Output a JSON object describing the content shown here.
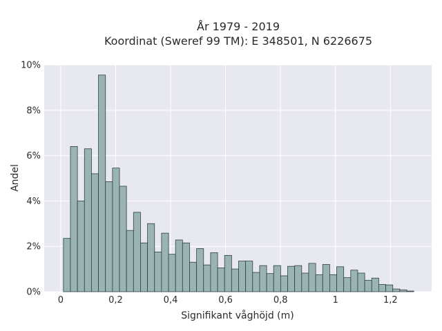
{
  "chart_data": {
    "type": "bar",
    "title_lines": [
      "År 1979 - 2019",
      "Koordinat (Sweref 99 TM): E 348501, N 6226675"
    ],
    "xlabel": "Signifikant våghöjd (m)",
    "ylabel": "Andel",
    "xlim": [
      -0.06,
      1.35
    ],
    "ylim": [
      0,
      10
    ],
    "x_ticks": [
      {
        "value": 0,
        "label": "0"
      },
      {
        "value": 0.2,
        "label": "0,2"
      },
      {
        "value": 0.4,
        "label": "0,4"
      },
      {
        "value": 0.6,
        "label": "0,6"
      },
      {
        "value": 0.8,
        "label": "0,8"
      },
      {
        "value": 1.0,
        "label": "1"
      },
      {
        "value": 1.2,
        "label": "1,2"
      }
    ],
    "y_ticks": [
      {
        "value": 0,
        "label": "0%"
      },
      {
        "value": 2,
        "label": "2%"
      },
      {
        "value": 4,
        "label": "4%"
      },
      {
        "value": 6,
        "label": "6%"
      },
      {
        "value": 8,
        "label": "8%"
      },
      {
        "value": 10,
        "label": "10%"
      }
    ],
    "bin_start": 0.01,
    "bin_width": 0.0255,
    "values": [
      2.35,
      6.4,
      4.0,
      6.3,
      5.2,
      9.55,
      4.85,
      5.45,
      4.65,
      2.7,
      3.5,
      2.15,
      3.0,
      1.75,
      2.58,
      1.65,
      2.28,
      2.15,
      1.3,
      1.9,
      1.18,
      1.72,
      1.05,
      1.6,
      1.0,
      1.35,
      1.35,
      0.85,
      1.15,
      0.8,
      1.15,
      0.7,
      1.12,
      1.15,
      0.82,
      1.25,
      0.75,
      1.2,
      0.75,
      1.1,
      0.62,
      0.95,
      0.82,
      0.5,
      0.6,
      0.32,
      0.3,
      0.12,
      0.08,
      0.03
    ],
    "grid": true,
    "colors": {
      "plot_background": "#e8e8f0",
      "grid": "#ffffff",
      "bar_fill": "#9ab4b4",
      "bar_edge": "#2f3f3f"
    }
  }
}
